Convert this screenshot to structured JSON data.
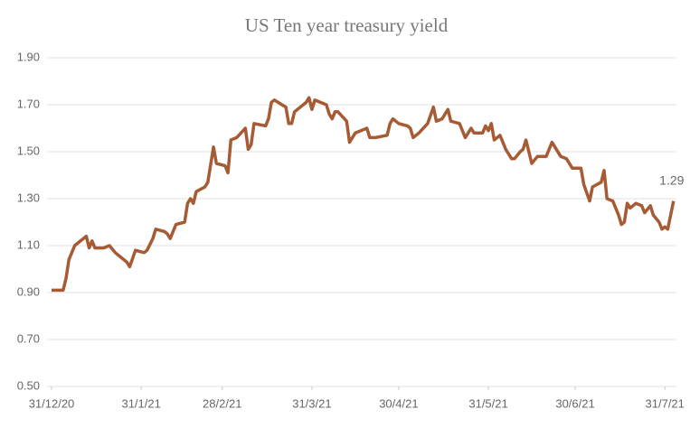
{
  "chart_data": {
    "type": "line",
    "title": "US Ten year treasury yield",
    "x": [
      "2020-12-31",
      "2021-01-04",
      "2021-01-05",
      "2021-01-06",
      "2021-01-08",
      "2021-01-12",
      "2021-01-13",
      "2021-01-14",
      "2021-01-15",
      "2021-01-18",
      "2021-01-20",
      "2021-01-22",
      "2021-01-25",
      "2021-01-26",
      "2021-01-27",
      "2021-01-29",
      "2021-02-01",
      "2021-02-02",
      "2021-02-04",
      "2021-02-05",
      "2021-02-08",
      "2021-02-09",
      "2021-02-10",
      "2021-02-12",
      "2021-02-15",
      "2021-02-16",
      "2021-02-17",
      "2021-02-18",
      "2021-02-19",
      "2021-02-22",
      "2021-02-23",
      "2021-02-25",
      "2021-02-26",
      "2021-03-01",
      "2021-03-02",
      "2021-03-03",
      "2021-03-05",
      "2021-03-08",
      "2021-03-09",
      "2021-03-10",
      "2021-03-11",
      "2021-03-15",
      "2021-03-16",
      "2021-03-17",
      "2021-03-18",
      "2021-03-22",
      "2021-03-23",
      "2021-03-24",
      "2021-03-25",
      "2021-03-29",
      "2021-03-30",
      "2021-03-31",
      "2021-04-01",
      "2021-04-05",
      "2021-04-06",
      "2021-04-07",
      "2021-04-08",
      "2021-04-09",
      "2021-04-12",
      "2021-04-13",
      "2021-04-15",
      "2021-04-19",
      "2021-04-20",
      "2021-04-22",
      "2021-04-26",
      "2021-04-27",
      "2021-04-28",
      "2021-04-30",
      "2021-05-03",
      "2021-05-04",
      "2021-05-05",
      "2021-05-07",
      "2021-05-10",
      "2021-05-12",
      "2021-05-13",
      "2021-05-15",
      "2021-05-17",
      "2021-05-18",
      "2021-05-21",
      "2021-05-23",
      "2021-05-25",
      "2021-05-26",
      "2021-05-29",
      "2021-05-30",
      "2021-05-31",
      "2021-06-01",
      "2021-06-02",
      "2021-06-04",
      "2021-06-06",
      "2021-06-08",
      "2021-06-09",
      "2021-06-11",
      "2021-06-12",
      "2021-06-13",
      "2021-06-15",
      "2021-06-17",
      "2021-06-20",
      "2021-06-22",
      "2021-06-25",
      "2021-06-27",
      "2021-06-28",
      "2021-06-29",
      "2021-07-02",
      "2021-07-03",
      "2021-07-05",
      "2021-07-06",
      "2021-07-09",
      "2021-07-10",
      "2021-07-11",
      "2021-07-13",
      "2021-07-15",
      "2021-07-16",
      "2021-07-17",
      "2021-07-18",
      "2021-07-19",
      "2021-07-21",
      "2021-07-23",
      "2021-07-24",
      "2021-07-26",
      "2021-07-27",
      "2021-07-29",
      "2021-07-30",
      "2021-07-31",
      "2021-08-01",
      "2021-08-03"
    ],
    "series": [
      {
        "name": "US Ten year treasury yield",
        "color": "#a65b35",
        "values": [
          0.91,
          0.91,
          0.96,
          1.04,
          1.1,
          1.14,
          1.09,
          1.12,
          1.09,
          1.09,
          1.1,
          1.07,
          1.04,
          1.03,
          1.01,
          1.08,
          1.07,
          1.08,
          1.13,
          1.17,
          1.16,
          1.15,
          1.13,
          1.19,
          1.2,
          1.28,
          1.3,
          1.28,
          1.33,
          1.35,
          1.37,
          1.52,
          1.45,
          1.44,
          1.41,
          1.55,
          1.56,
          1.6,
          1.51,
          1.53,
          1.62,
          1.61,
          1.64,
          1.71,
          1.72,
          1.69,
          1.62,
          1.62,
          1.67,
          1.71,
          1.73,
          1.68,
          1.72,
          1.7,
          1.66,
          1.64,
          1.67,
          1.67,
          1.63,
          1.54,
          1.58,
          1.6,
          1.56,
          1.56,
          1.57,
          1.62,
          1.64,
          1.62,
          1.61,
          1.6,
          1.56,
          1.58,
          1.62,
          1.69,
          1.63,
          1.64,
          1.68,
          1.63,
          1.62,
          1.56,
          1.6,
          1.58,
          1.58,
          1.61,
          1.59,
          1.62,
          1.55,
          1.57,
          1.51,
          1.47,
          1.47,
          1.5,
          1.51,
          1.55,
          1.45,
          1.48,
          1.48,
          1.54,
          1.48,
          1.47,
          1.45,
          1.43,
          1.43,
          1.36,
          1.29,
          1.35,
          1.37,
          1.42,
          1.3,
          1.29,
          1.23,
          1.19,
          1.2,
          1.28,
          1.26,
          1.28,
          1.27,
          1.24,
          1.27,
          1.23,
          1.2,
          1.17,
          1.18,
          1.17,
          1.29
        ]
      }
    ],
    "end_label": "1.29",
    "xlim": [
      "2020-12-31",
      "2021-08-04"
    ],
    "xticks": [
      {
        "value": "2020-12-31",
        "label": "31/12/20"
      },
      {
        "value": "2021-01-31",
        "label": "31/1/21"
      },
      {
        "value": "2021-02-28",
        "label": "28/2/21"
      },
      {
        "value": "2021-03-31",
        "label": "31/3/21"
      },
      {
        "value": "2021-04-30",
        "label": "30/4/21"
      },
      {
        "value": "2021-05-31",
        "label": "31/5/21"
      },
      {
        "value": "2021-06-30",
        "label": "30/6/21"
      },
      {
        "value": "2021-07-31",
        "label": "31/7/21"
      }
    ],
    "ylim": [
      0.5,
      1.9
    ],
    "yticks": [
      {
        "value": 0.5,
        "label": "0.50"
      },
      {
        "value": 0.7,
        "label": "0.70"
      },
      {
        "value": 0.9,
        "label": "0.90"
      },
      {
        "value": 1.1,
        "label": "1.10"
      },
      {
        "value": 1.3,
        "label": "1.30"
      },
      {
        "value": 1.5,
        "label": "1.50"
      },
      {
        "value": 1.7,
        "label": "1.70"
      },
      {
        "value": 1.9,
        "label": "1.90"
      }
    ],
    "grid": true
  }
}
